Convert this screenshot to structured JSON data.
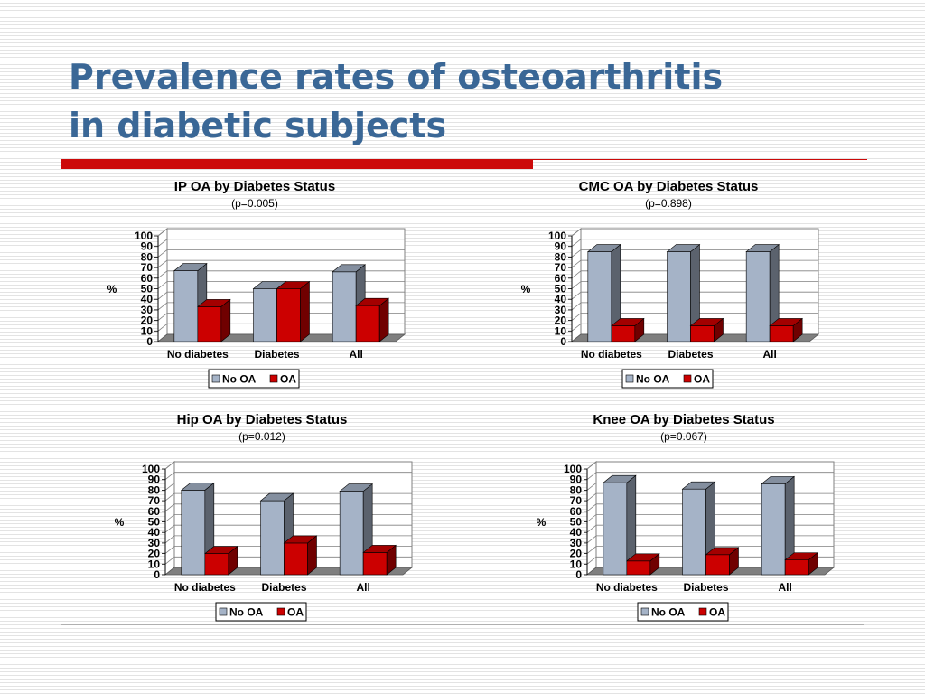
{
  "slide": {
    "title_line1": "Prevalence rates of osteoarthritis",
    "title_line2": "in diabetic subjects"
  },
  "colors": {
    "title": "#3a6796",
    "accent_red": "#cc0a0a",
    "no_oa_bar": "#a5b3c7",
    "oa_bar": "#cc0000"
  },
  "chart_data": [
    {
      "type": "bar",
      "title": "IP OA by Diabetes Status",
      "subtitle": "(p=0.005)",
      "categories": [
        "No diabetes",
        "Diabetes",
        "All"
      ],
      "series": [
        {
          "name": "No OA",
          "values": [
            67,
            50,
            66
          ]
        },
        {
          "name": "OA",
          "values": [
            33,
            50,
            34
          ]
        }
      ],
      "ylabel": "%",
      "ylim": [
        0,
        100
      ],
      "yticks": [
        0,
        10,
        20,
        30,
        40,
        50,
        60,
        70,
        80,
        90,
        100
      ],
      "grid": true,
      "legend": "bottom"
    },
    {
      "type": "bar",
      "title": "CMC OA by Diabetes Status",
      "subtitle": "(p=0.898)",
      "categories": [
        "No diabetes",
        "Diabetes",
        "All"
      ],
      "series": [
        {
          "name": "No OA",
          "values": [
            85,
            85,
            85
          ]
        },
        {
          "name": "OA",
          "values": [
            15,
            15,
            15
          ]
        }
      ],
      "ylabel": "%",
      "ylim": [
        0,
        100
      ],
      "yticks": [
        0,
        10,
        20,
        30,
        40,
        50,
        60,
        70,
        80,
        90,
        100
      ],
      "grid": true,
      "legend": "bottom"
    },
    {
      "type": "bar",
      "title": "Hip OA by Diabetes Status",
      "subtitle": "(p=0.012)",
      "categories": [
        "No diabetes",
        "Diabetes",
        "All"
      ],
      "series": [
        {
          "name": "No OA",
          "values": [
            80,
            70,
            79
          ]
        },
        {
          "name": "OA",
          "values": [
            20,
            30,
            21
          ]
        }
      ],
      "ylabel": "%",
      "ylim": [
        0,
        100
      ],
      "yticks": [
        0,
        10,
        20,
        30,
        40,
        50,
        60,
        70,
        80,
        90,
        100
      ],
      "grid": true,
      "legend": "bottom"
    },
    {
      "type": "bar",
      "title": "Knee OA by Diabetes Status",
      "subtitle": "(p=0.067)",
      "categories": [
        "No diabetes",
        "Diabetes",
        "All"
      ],
      "series": [
        {
          "name": "No OA",
          "values": [
            87,
            81,
            86
          ]
        },
        {
          "name": "OA",
          "values": [
            13,
            19,
            14
          ]
        }
      ],
      "ylabel": "%",
      "ylim": [
        0,
        100
      ],
      "yticks": [
        0,
        10,
        20,
        30,
        40,
        50,
        60,
        70,
        80,
        90,
        100
      ],
      "grid": true,
      "legend": "bottom"
    }
  ]
}
